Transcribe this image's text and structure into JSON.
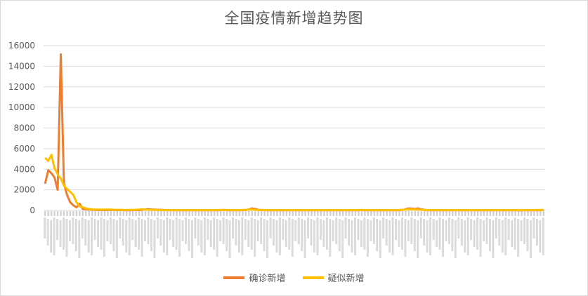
{
  "chart_data": {
    "type": "line",
    "title": "全国疫情新增趋势图",
    "ylim": [
      0,
      16000
    ],
    "y_ticks": [
      "0",
      "2000",
      "4000",
      "6000",
      "8000",
      "10000",
      "12000",
      "14000",
      "16000"
    ],
    "grid": true,
    "legend_position": "bottom",
    "x_count": 160,
    "series": [
      {
        "name": "确诊新增",
        "color": "#ED7D31",
        "values": [
          2600,
          3900,
          3600,
          3200,
          2000,
          15152,
          2600,
          1500,
          800,
          500,
          300,
          650,
          150,
          100,
          80,
          60,
          50,
          40,
          40,
          30,
          40,
          50,
          40,
          30,
          40,
          30,
          20,
          20,
          30,
          40,
          30,
          60,
          100,
          120,
          90,
          80,
          60,
          60,
          40,
          30,
          30,
          20,
          20,
          20,
          20,
          20,
          20,
          20,
          20,
          20,
          20,
          20,
          20,
          20,
          20,
          20,
          30,
          50,
          30,
          20,
          20,
          20,
          20,
          30,
          40,
          100,
          200,
          150,
          60,
          40,
          30,
          20,
          20,
          20,
          20,
          20,
          20,
          20,
          20,
          20,
          20,
          20,
          20,
          20,
          20,
          20,
          20,
          20,
          20,
          20,
          20,
          20,
          20,
          20,
          20,
          20,
          20,
          20,
          20,
          20,
          30,
          40,
          20,
          20,
          20,
          20,
          20,
          20,
          20,
          20,
          20,
          20,
          20,
          30,
          50,
          120,
          200,
          180,
          150,
          200,
          100,
          60,
          30,
          20,
          20,
          20,
          20,
          20,
          20,
          20,
          20,
          20,
          20,
          20,
          20,
          20,
          20,
          20,
          20,
          20,
          20,
          20,
          20,
          20,
          20,
          20,
          20,
          20,
          20,
          20,
          20,
          20,
          20,
          20,
          20,
          20,
          20,
          20,
          30,
          40
        ]
      },
      {
        "name": "疑似新增",
        "color": "#FFC000",
        "values": [
          5100,
          4800,
          5400,
          4100,
          3500,
          3100,
          2400,
          2100,
          1800,
          1500,
          800,
          400,
          300,
          200,
          150,
          100,
          90,
          80,
          80,
          80,
          90,
          90,
          70,
          60,
          60,
          50,
          40,
          50,
          60,
          60,
          80,
          100,
          80,
          60,
          50,
          50,
          40,
          40,
          30,
          30,
          30,
          30,
          30,
          30,
          30,
          30,
          30,
          30,
          30,
          30,
          30,
          30,
          30,
          30,
          30,
          30,
          40,
          40,
          30,
          30,
          30,
          30,
          30,
          40,
          60,
          80,
          80,
          60,
          40,
          30,
          30,
          30,
          30,
          30,
          30,
          30,
          30,
          30,
          30,
          30,
          30,
          30,
          30,
          30,
          30,
          30,
          30,
          30,
          30,
          30,
          30,
          30,
          30,
          30,
          30,
          30,
          30,
          30,
          30,
          30,
          40,
          40,
          30,
          30,
          30,
          30,
          30,
          30,
          30,
          30,
          30,
          30,
          30,
          40,
          60,
          80,
          100,
          100,
          90,
          80,
          60,
          40,
          30,
          30,
          30,
          30,
          30,
          30,
          30,
          30,
          30,
          30,
          30,
          30,
          30,
          30,
          30,
          30,
          30,
          30,
          30,
          30,
          30,
          30,
          30,
          30,
          30,
          30,
          30,
          30,
          30,
          30,
          30,
          30,
          30,
          30,
          30,
          40,
          40,
          40
        ]
      }
    ]
  }
}
